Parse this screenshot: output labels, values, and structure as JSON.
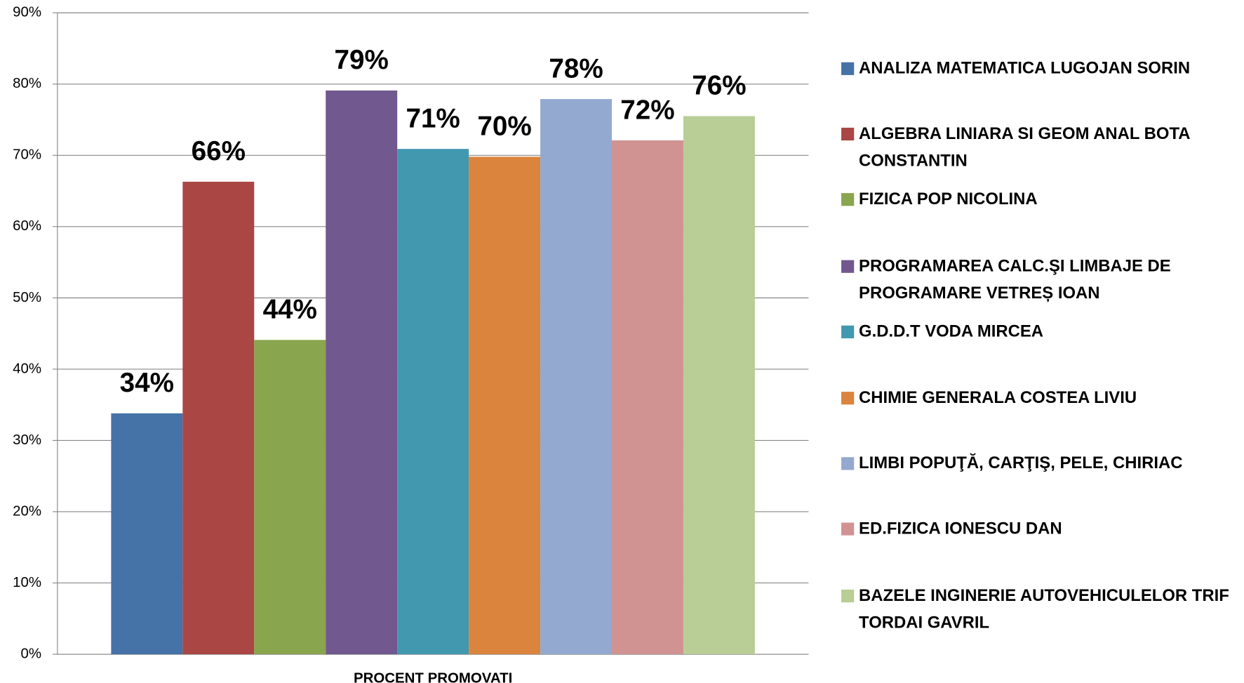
{
  "chart_data": {
    "type": "bar",
    "categories": [
      "PROCENT PROMOVATI"
    ],
    "series": [
      {
        "name": "ANALIZA MATEMATICA LUGOJAN SORIN",
        "color": "#4572a7",
        "values": [
          33.8
        ],
        "value_labels": [
          "34%"
        ]
      },
      {
        "name": "ALGEBRA LINIARA SI GEOM ANAL BOTA CONSTANTIN",
        "color": "#aa4643",
        "values": [
          66.3
        ],
        "value_labels": [
          "66%"
        ]
      },
      {
        "name": "FIZICA POP NICOLINA",
        "color": "#89a54e",
        "values": [
          44.1
        ],
        "value_labels": [
          "44%"
        ]
      },
      {
        "name": "PROGRAMAREA CALC.ŞI LIMBAJE DE PROGRAMARE VETREȘ IOAN",
        "color": "#71588f",
        "values": [
          79.1
        ],
        "value_labels": [
          "79%"
        ]
      },
      {
        "name": "G.D.D.T VODA MIRCEA",
        "color": "#4198af",
        "values": [
          70.9
        ],
        "value_labels": [
          "71%"
        ]
      },
      {
        "name": "CHIMIE GENERALA COSTEA LIVIU",
        "color": "#db843d",
        "values": [
          69.8
        ],
        "value_labels": [
          "70%"
        ]
      },
      {
        "name": "LIMBI POPUŢĂ, CARŢIŞ, PELE, CHIRIAC",
        "color": "#93a9cf",
        "values": [
          77.9
        ],
        "value_labels": [
          "78%"
        ]
      },
      {
        "name": "ED.FIZICA IONESCU DAN",
        "color": "#d19392",
        "values": [
          72.1
        ],
        "value_labels": [
          "72%"
        ]
      },
      {
        "name": "BAZELE INGINERIE AUTOVEHICULELOR TRIF TORDAI GAVRIL",
        "color": "#b9cd96",
        "values": [
          75.5
        ],
        "value_labels": [
          "76%"
        ]
      }
    ],
    "ylim": [
      0,
      90
    ],
    "yticks": [
      {
        "value": 0,
        "label": "0%"
      },
      {
        "value": 10,
        "label": "10%"
      },
      {
        "value": 20,
        "label": "20%"
      },
      {
        "value": 30,
        "label": "30%"
      },
      {
        "value": 40,
        "label": "40%"
      },
      {
        "value": 50,
        "label": "50%"
      },
      {
        "value": 60,
        "label": "60%"
      },
      {
        "value": 70,
        "label": "70%"
      },
      {
        "value": 80,
        "label": "80%"
      },
      {
        "value": 90,
        "label": "90%"
      }
    ],
    "grid": true,
    "legend": "right"
  }
}
